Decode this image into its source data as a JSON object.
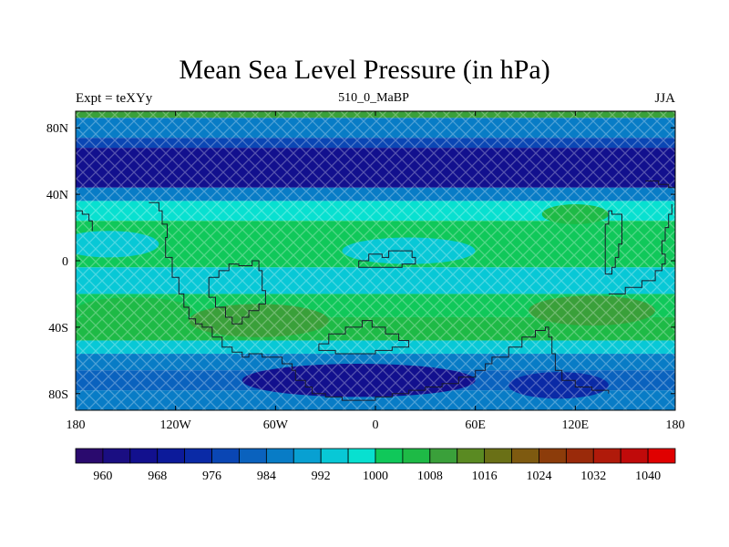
{
  "title": "Mean Sea Level Pressure (in hPa)",
  "left_string": "Expt = teXYy",
  "center_string": "510_0_MaBP",
  "right_string": "JJA",
  "chart_data": {
    "type": "heatmap",
    "title": "Mean Sea Level Pressure (in hPa)",
    "units": "hPa",
    "xlim": [
      -180,
      180
    ],
    "ylim": [
      -90,
      90
    ],
    "x_ticks": [
      {
        "value": -180,
        "label": "180"
      },
      {
        "value": -120,
        "label": "120W"
      },
      {
        "value": -60,
        "label": "60W"
      },
      {
        "value": 0,
        "label": "0"
      },
      {
        "value": 60,
        "label": "60E"
      },
      {
        "value": 120,
        "label": "120E"
      },
      {
        "value": 180,
        "label": "180"
      }
    ],
    "y_ticks": [
      {
        "value": 80,
        "label": "80N"
      },
      {
        "value": 40,
        "label": "40N"
      },
      {
        "value": 0,
        "label": "0"
      },
      {
        "value": -40,
        "label": "40S"
      },
      {
        "value": -80,
        "label": "80S"
      }
    ],
    "colorbar": {
      "levels": [
        960,
        964,
        968,
        972,
        976,
        980,
        984,
        988,
        992,
        996,
        1000,
        1004,
        1008,
        1012,
        1016,
        1020,
        1024,
        1028,
        1032,
        1036,
        1040
      ],
      "labels": [
        960,
        968,
        976,
        984,
        992,
        1000,
        1008,
        1016,
        1024,
        1032,
        1040
      ],
      "colors": [
        "#2a0a6e",
        "#1a0e82",
        "#12108e",
        "#0c1a9a",
        "#0a2aa6",
        "#0a46b4",
        "#0a62be",
        "#087cc6",
        "#08a0d2",
        "#08c8d6",
        "#08e0d0",
        "#10c85a",
        "#1eba46",
        "#3aa03a",
        "#5a8a22",
        "#6a7016",
        "#7e5a10",
        "#8c3c0a",
        "#9a2a0a",
        "#b01a0a",
        "#c00a0a",
        "#e00000"
      ]
    },
    "bands": [
      {
        "lat_max": 90,
        "lat_min": 86,
        "value": 1008
      },
      {
        "lat_max": 86,
        "lat_min": 74,
        "value": 986
      },
      {
        "lat_max": 74,
        "lat_min": 68,
        "value": 978
      },
      {
        "lat_max": 68,
        "lat_min": 44,
        "value": 966
      },
      {
        "lat_max": 44,
        "lat_min": 36,
        "value": 984
      },
      {
        "lat_max": 36,
        "lat_min": 24,
        "value": 996
      },
      {
        "lat_max": 24,
        "lat_min": -4,
        "value": 1000
      },
      {
        "lat_max": -4,
        "lat_min": -20,
        "value": 994
      },
      {
        "lat_max": -20,
        "lat_min": -34,
        "value": 1000
      },
      {
        "lat_max": -34,
        "lat_min": -48,
        "value": 1006
      },
      {
        "lat_max": -48,
        "lat_min": -56,
        "value": 994
      },
      {
        "lat_max": -56,
        "lat_min": -66,
        "value": 986
      },
      {
        "lat_max": -66,
        "lat_min": -78,
        "value": 982
      },
      {
        "lat_max": -78,
        "lat_min": -90,
        "value": 986
      }
    ],
    "features": [
      {
        "type": "high",
        "lon": 130,
        "lat": -30,
        "rx": 38,
        "ry": 9,
        "value": 1008
      },
      {
        "type": "high",
        "lon": -70,
        "lat": -36,
        "rx": 42,
        "ry": 10,
        "value": 1008
      },
      {
        "type": "high",
        "lon": -145,
        "lat": -30,
        "rx": 35,
        "ry": 8,
        "value": 1006
      },
      {
        "type": "high",
        "lon": 120,
        "lat": 28,
        "rx": 20,
        "ry": 6,
        "value": 1006
      },
      {
        "type": "low",
        "lon": -10,
        "lat": -72,
        "rx": 70,
        "ry": 10,
        "value": 964
      },
      {
        "type": "low",
        "lon": 110,
        "lat": -75,
        "rx": 30,
        "ry": 8,
        "value": 972
      },
      {
        "type": "low",
        "lon": 20,
        "lat": 6,
        "rx": 40,
        "ry": 8,
        "value": 992
      },
      {
        "type": "low",
        "lon": -160,
        "lat": 10,
        "rx": 30,
        "ry": 8,
        "value": 992
      }
    ],
    "coastlines": [
      [
        [
          -136,
          35
        ],
        [
          -130,
          30
        ],
        [
          -128,
          22
        ],
        [
          -125,
          14
        ],
        [
          -126,
          2
        ],
        [
          -122,
          -10
        ],
        [
          -118,
          -20
        ],
        [
          -115,
          -28
        ],
        [
          -112,
          -35
        ],
        [
          -108,
          -38
        ],
        [
          -104,
          -40
        ],
        [
          -98,
          -46
        ],
        [
          -92,
          -52
        ],
        [
          -86,
          -55
        ],
        [
          -80,
          -58
        ],
        [
          -76,
          -56
        ],
        [
          -68,
          -58
        ],
        [
          -62,
          -58
        ],
        [
          -56,
          -62
        ],
        [
          -50,
          -66
        ],
        [
          -48,
          -72
        ],
        [
          -42,
          -76
        ],
        [
          -38,
          -80
        ],
        [
          -30,
          -82
        ],
        [
          -20,
          -84
        ],
        [
          -10,
          -84
        ],
        [
          0,
          -82
        ],
        [
          10,
          -80
        ],
        [
          20,
          -78
        ],
        [
          30,
          -76
        ],
        [
          40,
          -74
        ],
        [
          50,
          -70
        ],
        [
          60,
          -66
        ],
        [
          66,
          -62
        ],
        [
          70,
          -58
        ],
        [
          80,
          -52
        ],
        [
          88,
          -46
        ],
        [
          96,
          -42
        ],
        [
          102,
          -40
        ],
        [
          104,
          -46
        ],
        [
          106,
          -56
        ],
        [
          108,
          -66
        ],
        [
          112,
          -72
        ],
        [
          120,
          -76
        ],
        [
          130,
          -78
        ],
        [
          140,
          -80
        ]
      ],
      [
        [
          -100,
          -10
        ],
        [
          -94,
          -6
        ],
        [
          -88,
          -2
        ],
        [
          -82,
          -3
        ],
        [
          -74,
          0
        ],
        [
          -70,
          -6
        ],
        [
          -68,
          -18
        ],
        [
          -66,
          -26
        ],
        [
          -70,
          -30
        ],
        [
          -76,
          -34
        ],
        [
          -80,
          -38
        ],
        [
          -86,
          -34
        ],
        [
          -90,
          -28
        ],
        [
          -96,
          -22
        ],
        [
          -100,
          -16
        ],
        [
          -100,
          -10
        ]
      ],
      [
        [
          -34,
          -50
        ],
        [
          -28,
          -44
        ],
        [
          -18,
          -40
        ],
        [
          -8,
          -36
        ],
        [
          -2,
          -40
        ],
        [
          6,
          -44
        ],
        [
          14,
          -48
        ],
        [
          20,
          -52
        ],
        [
          10,
          -54
        ],
        [
          0,
          -56
        ],
        [
          -12,
          -56
        ],
        [
          -24,
          -54
        ],
        [
          -34,
          -50
        ]
      ],
      [
        [
          -10,
          0
        ],
        [
          -4,
          4
        ],
        [
          4,
          2
        ],
        [
          8,
          6
        ],
        [
          16,
          6
        ],
        [
          22,
          2
        ],
        [
          24,
          -2
        ],
        [
          16,
          -4
        ],
        [
          4,
          -4
        ],
        [
          -6,
          -4
        ],
        [
          -10,
          0
        ]
      ],
      [
        [
          140,
          -20
        ],
        [
          150,
          -16
        ],
        [
          160,
          -12
        ],
        [
          168,
          -6
        ],
        [
          172,
          -2
        ],
        [
          174,
          4
        ],
        [
          172,
          12
        ],
        [
          174,
          20
        ],
        [
          176,
          28
        ],
        [
          178,
          34
        ]
      ],
      [
        [
          138,
          -8
        ],
        [
          142,
          -4
        ],
        [
          144,
          2
        ],
        [
          146,
          10
        ],
        [
          148,
          20
        ],
        [
          148,
          28
        ],
        [
          142,
          30
        ],
        [
          140,
          22
        ],
        [
          138,
          12
        ],
        [
          138,
          2
        ],
        [
          138,
          -8
        ]
      ],
      [
        [
          162,
          48
        ],
        [
          170,
          46
        ],
        [
          176,
          44
        ],
        [
          180,
          42
        ]
      ],
      [
        [
          -180,
          30
        ],
        [
          -176,
          28
        ],
        [
          -172,
          24
        ],
        [
          -170,
          18
        ]
      ]
    ]
  }
}
